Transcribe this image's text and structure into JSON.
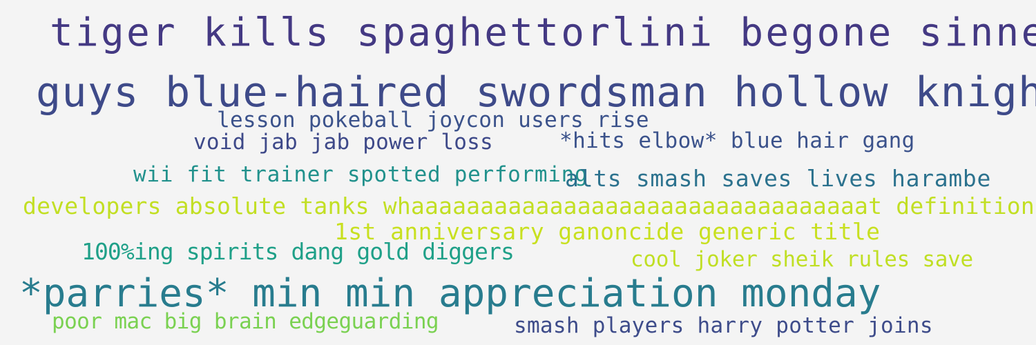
{
  "word_cloud": {
    "background": "#f4f4f4",
    "phrases": [
      {
        "text": "tiger kills spaghettorlini begone sinner",
        "color": "#443983"
      },
      {
        "text": "guys blue-haired swordsman hollow knight",
        "color": "#3e4a89"
      },
      {
        "text": "lesson pokeball joycon users rise",
        "color": "#3b528b"
      },
      {
        "text": "void jab jab power loss",
        "color": "#3e4989"
      },
      {
        "text": "*hits elbow* blue hair gang",
        "color": "#3b528b"
      },
      {
        "text": "wii fit trainer spotted performing",
        "color": "#21918c"
      },
      {
        "text": "alts smash saves lives harambe",
        "color": "#2c728e"
      },
      {
        "text": "developers absolute tanks whaaaaaaaaaaaaaaaaaaaaaaaaaaaaaaaaat definition",
        "color": "#c2df23"
      },
      {
        "text": "1st anniversary ganoncide generic title",
        "color": "#c8e020"
      },
      {
        "text": "100%ing spirits dang gold diggers",
        "color": "#1fa088"
      },
      {
        "text": "cool joker sheik rules save",
        "color": "#c0df25"
      },
      {
        "text": "*parries* min min appreciation monday",
        "color": "#287c8e"
      },
      {
        "text": "poor mac big brain edgeguarding",
        "color": "#7ad151"
      },
      {
        "text": "smash players harry potter joins",
        "color": "#3e4c8a"
      }
    ]
  }
}
